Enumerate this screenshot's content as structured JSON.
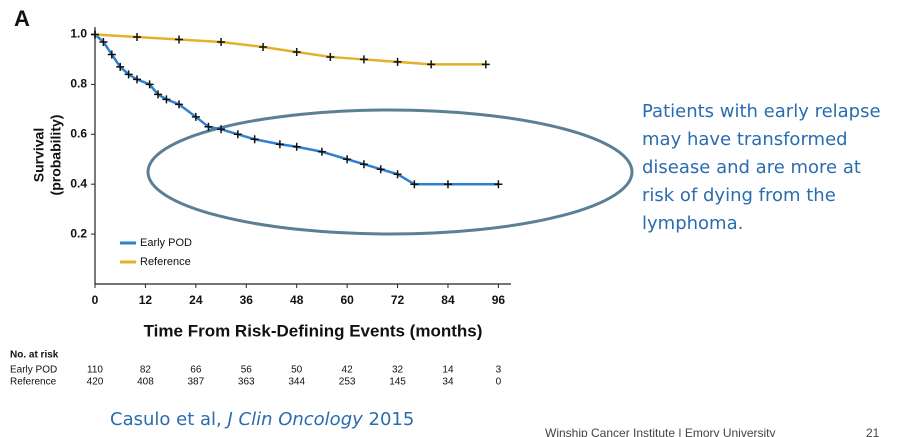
{
  "chart_data": {
    "type": "line",
    "panel_label": "A",
    "x_label": "Time From Risk-Defining Events (months)",
    "y_label": [
      "Survival",
      "(probability)"
    ],
    "xlim": [
      0,
      99
    ],
    "xticks": [
      0,
      12,
      24,
      36,
      48,
      60,
      72,
      84,
      96
    ],
    "ylim": [
      0,
      1.03
    ],
    "yticks": [
      0.2,
      0.4,
      0.6,
      0.8,
      {
        "value": 1,
        "label": "1.0"
      }
    ],
    "legend": "lower left",
    "series": [
      {
        "name": "Early POD",
        "color": "#2f80d0",
        "x": [
          0,
          2,
          4,
          6,
          8,
          10,
          13,
          15,
          17,
          20,
          24,
          27,
          30,
          34,
          38,
          44,
          48,
          54,
          60,
          64,
          68,
          72,
          76,
          84,
          96
        ],
        "values": [
          1.0,
          0.97,
          0.92,
          0.87,
          0.84,
          0.82,
          0.8,
          0.76,
          0.74,
          0.72,
          0.67,
          0.63,
          0.62,
          0.6,
          0.58,
          0.56,
          0.55,
          0.53,
          0.5,
          0.48,
          0.46,
          0.44,
          0.4,
          0.4,
          0.4
        ]
      },
      {
        "name": "Reference",
        "color": "#e3b12a",
        "x": [
          0,
          10,
          20,
          30,
          40,
          48,
          56,
          64,
          72,
          80,
          93
        ],
        "values": [
          1.0,
          0.99,
          0.98,
          0.97,
          0.95,
          0.93,
          0.91,
          0.9,
          0.89,
          0.88,
          0.88
        ]
      }
    ]
  },
  "risk_table": {
    "title": "No. at risk",
    "rows": [
      {
        "label": "Early POD",
        "values": [
          110,
          82,
          66,
          56,
          50,
          42,
          32,
          14,
          3
        ]
      },
      {
        "label": "Reference",
        "values": [
          420,
          408,
          387,
          363,
          344,
          253,
          145,
          34,
          0
        ]
      }
    ]
  },
  "annotation": [
    "Patients with early relapse",
    "may have transformed",
    "disease and are more at",
    "risk of dying from the",
    "lymphoma."
  ],
  "citation": {
    "authors": "Casulo et al,",
    "journal": "J Clin Oncology",
    "year": "2015"
  },
  "footer": {
    "institution": "Winship Cancer Institute | Emory University",
    "page": "21"
  }
}
